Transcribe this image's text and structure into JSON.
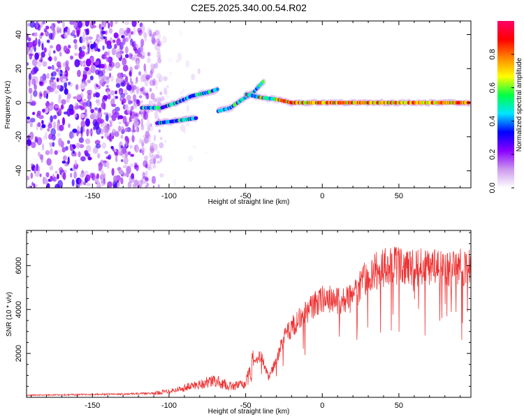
{
  "title": "C2E5.2025.340.00.54.R02",
  "chart_data": [
    {
      "type": "heatmap",
      "xlabel": "Height of straight line (km)",
      "ylabel": "Frequency (Hz)",
      "xlim": [
        -193,
        97
      ],
      "ylim": [
        -50,
        48
      ],
      "xticks": [
        -150,
        -100,
        -50,
        0,
        50
      ],
      "xtick_labels": [
        "-150",
        "-100",
        "-50",
        "0",
        "50"
      ],
      "yticks": [
        -40,
        -20,
        0,
        20,
        40
      ],
      "ytick_labels": [
        "-40",
        "-20",
        "0",
        "20",
        "40"
      ],
      "colorbar": {
        "label": "Normalized spectral amplitude",
        "range": [
          0,
          1
        ],
        "ticks": [
          0.0,
          0.2,
          0.4,
          0.6,
          0.8
        ],
        "tick_labels": [
          "0.0",
          "0.2",
          "0.4",
          "0.6",
          "0.8"
        ],
        "colors": [
          "#ffffff",
          "#cc99ee",
          "#8800ff",
          "#0000ff",
          "#00e5ff",
          "#00ff44",
          "#ffff00",
          "#ff8800",
          "#ff0000",
          "#ff0066"
        ]
      },
      "noise_region_x": [
        -193,
        -100
      ],
      "tracks": [
        {
          "name": "upper-branch",
          "points": [
            [
              -118,
              -3
            ],
            [
              -105,
              -3
            ],
            [
              -95,
              0
            ],
            [
              -85,
              4
            ],
            [
              -75,
              6
            ],
            [
              -68,
              8
            ]
          ]
        },
        {
          "name": "lower-branch",
          "points": [
            [
              -108,
              -12
            ],
            [
              -98,
              -11
            ],
            [
              -90,
              -10
            ],
            [
              -82,
              -9
            ]
          ]
        },
        {
          "name": "middle-branch",
          "points": [
            [
              -68,
              -5
            ],
            [
              -60,
              -3
            ],
            [
              -52,
              2
            ],
            [
              -45,
              6
            ],
            [
              -38,
              13
            ]
          ]
        },
        {
          "name": "carrier",
          "points": [
            [
              -50,
              5
            ],
            [
              -40,
              3
            ],
            [
              -30,
              2
            ],
            [
              -20,
              0
            ],
            [
              0,
              0
            ],
            [
              20,
              0
            ],
            [
              50,
              0
            ],
            [
              96,
              0
            ]
          ]
        }
      ]
    },
    {
      "type": "line",
      "xlabel": "Height of straight line (km)",
      "ylabel": "SNR (10 * v/v)",
      "xlim": [
        -193,
        97
      ],
      "ylim": [
        0,
        7600
      ],
      "xticks": [
        -150,
        -100,
        -50,
        0,
        50
      ],
      "xtick_labels": [
        "-150",
        "-100",
        "-50",
        "0",
        "50"
      ],
      "yticks": [
        2000,
        4000,
        6000
      ],
      "ytick_labels": [
        "2000",
        "4000",
        "6000"
      ],
      "color": "#ee3333",
      "envelope": {
        "x": [
          -193,
          -150,
          -110,
          -95,
          -80,
          -70,
          -60,
          -50,
          -45,
          -40,
          -35,
          -30,
          -25,
          -20,
          -10,
          0,
          10,
          20,
          25,
          30,
          40,
          50,
          60,
          70,
          80,
          97
        ],
        "y": [
          100,
          130,
          180,
          350,
          600,
          750,
          500,
          600,
          1600,
          1900,
          900,
          1700,
          2700,
          3200,
          3900,
          4500,
          4400,
          4500,
          5100,
          5600,
          5900,
          6000,
          5950,
          5900,
          5900,
          5950
        ]
      }
    }
  ]
}
